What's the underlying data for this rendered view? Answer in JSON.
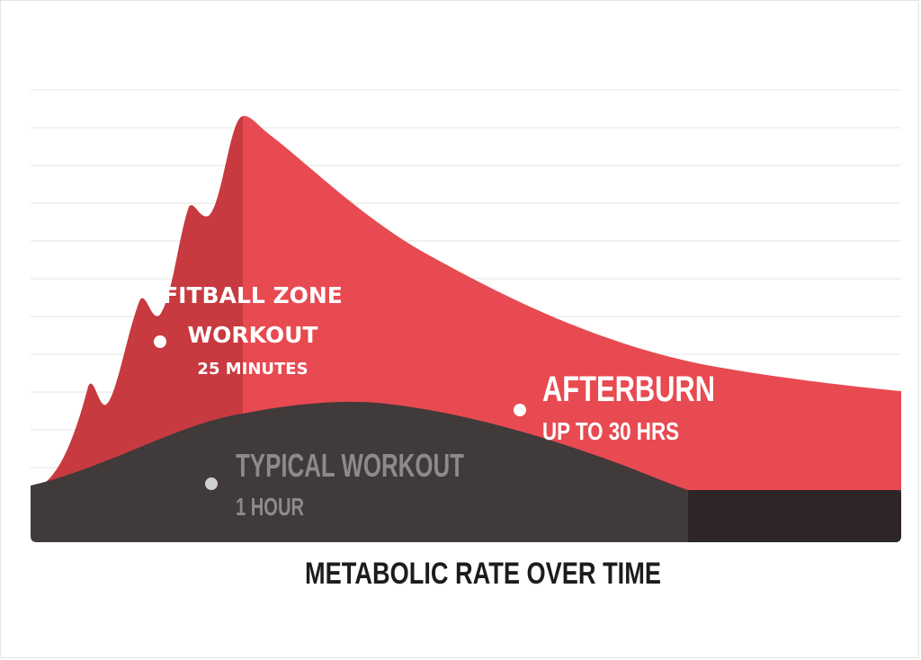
{
  "chart_data": {
    "type": "area",
    "title": "METABOLIC RATE OVER TIME",
    "series": [
      {
        "label": "FITBALL ZONE",
        "sublabel": "WORKOUT",
        "detail": "25 MINUTES"
      },
      {
        "label": "AFTERBURN",
        "detail": "UP TO 30 HRS"
      },
      {
        "label": "TYPICAL WORKOUT",
        "detail": "1 HOUR"
      }
    ],
    "grid": true
  },
  "colors": {
    "workout_red": "#c73a3f",
    "afterburn_red": "#e84a51",
    "typical_dark": "#403a3a",
    "typical_darker": "#2e2626",
    "gridline": "#eeeeee",
    "title": "#1c1c1c",
    "label_white": "#ffffff",
    "label_gray": "#8e8a8a"
  }
}
